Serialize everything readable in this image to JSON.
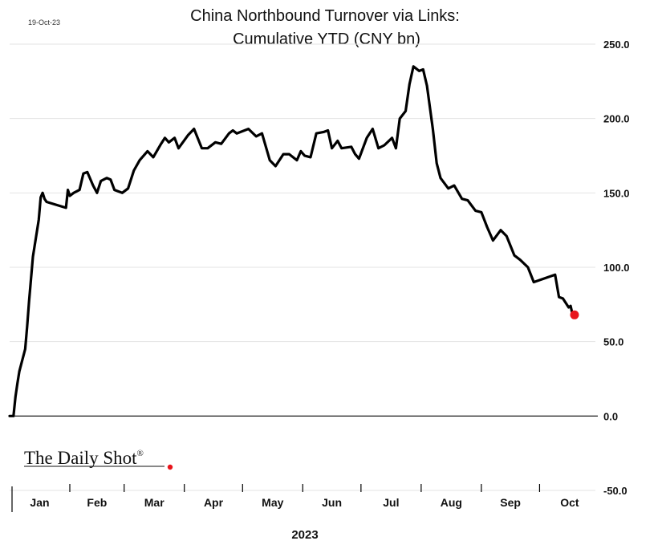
{
  "date_stamp": "19-Oct-23",
  "brand": {
    "name": "The Daily Shot",
    "mark": "®",
    "dot_color": "#e8141b"
  },
  "chart_data": {
    "type": "line",
    "title": [
      "China Northbound Turnover via Links:",
      "Cumulative YTD (CNY bn)"
    ],
    "xlabel": "2023",
    "ylabel": "",
    "ylim": [
      -50,
      250
    ],
    "yticks": [
      250,
      200,
      150,
      100,
      50,
      0,
      -50
    ],
    "ytick_labels": [
      "250.0",
      "200.0",
      "150.0",
      "100.0",
      "50.0",
      "0.0",
      "-50.0"
    ],
    "y_axis_position": "right",
    "grid": true,
    "legend": "none",
    "x_tick_labels": [
      "Jan",
      "Feb",
      "Mar",
      "Apr",
      "May",
      "Jun",
      "Jul",
      "Aug",
      "Sep",
      "Oct"
    ],
    "line_color": "#000000",
    "last_point_color": "#e8141b",
    "series": [
      {
        "x": [
          "2023-01-01",
          "2023-01-03",
          "2023-01-04",
          "2023-01-05",
          "2023-01-06",
          "2023-01-09",
          "2023-01-10",
          "2023-01-11",
          "2023-01-12",
          "2023-01-13",
          "2023-01-16",
          "2023-01-17",
          "2023-01-18",
          "2023-01-19",
          "2023-01-20",
          "2023-01-30",
          "2023-01-31",
          "2023-02-01",
          "2023-02-03",
          "2023-02-06",
          "2023-02-08",
          "2023-02-10",
          "2023-02-13",
          "2023-02-15",
          "2023-02-17",
          "2023-02-20",
          "2023-02-22",
          "2023-02-24",
          "2023-02-28",
          "2023-03-03",
          "2023-03-06",
          "2023-03-09",
          "2023-03-13",
          "2023-03-16",
          "2023-03-20",
          "2023-03-22",
          "2023-03-24",
          "2023-03-27",
          "2023-03-29",
          "2023-04-03",
          "2023-04-06",
          "2023-04-10",
          "2023-04-13",
          "2023-04-17",
          "2023-04-20",
          "2023-04-24",
          "2023-04-26",
          "2023-04-28",
          "2023-05-04",
          "2023-05-08",
          "2023-05-11",
          "2023-05-15",
          "2023-05-18",
          "2023-05-22",
          "2023-05-25",
          "2023-05-29",
          "2023-05-31",
          "2023-06-02",
          "2023-06-05",
          "2023-06-08",
          "2023-06-12",
          "2023-06-14",
          "2023-06-16",
          "2023-06-19",
          "2023-06-21",
          "2023-06-26",
          "2023-06-28",
          "2023-06-30",
          "2023-07-04",
          "2023-07-07",
          "2023-07-10",
          "2023-07-13",
          "2023-07-17",
          "2023-07-19",
          "2023-07-21",
          "2023-07-24",
          "2023-07-26",
          "2023-07-28",
          "2023-07-31",
          "2023-08-02",
          "2023-08-04",
          "2023-08-07",
          "2023-08-09",
          "2023-08-11",
          "2023-08-15",
          "2023-08-18",
          "2023-08-22",
          "2023-08-25",
          "2023-08-29",
          "2023-09-01",
          "2023-09-04",
          "2023-09-07",
          "2023-09-11",
          "2023-09-14",
          "2023-09-18",
          "2023-09-21",
          "2023-09-25",
          "2023-09-28",
          "2023-10-09",
          "2023-10-11",
          "2023-10-13",
          "2023-10-16",
          "2023-10-17",
          "2023-10-18",
          "2023-10-19"
        ],
        "values": [
          0,
          0,
          13,
          22,
          30,
          45,
          60,
          77,
          92,
          107,
          132,
          147,
          150,
          146,
          144,
          140,
          152,
          148,
          150,
          152,
          163,
          164,
          155,
          150,
          158,
          160,
          159,
          152,
          150,
          153,
          165,
          172,
          178,
          174,
          183,
          187,
          184,
          187,
          180,
          189,
          193,
          180,
          180,
          184,
          183,
          190,
          192,
          190,
          193,
          188,
          190,
          172,
          168,
          176,
          176,
          172,
          178,
          175,
          174,
          190,
          191,
          192,
          180,
          185,
          180,
          181,
          176,
          173,
          187,
          193,
          180,
          182,
          187,
          180,
          200,
          205,
          223,
          235,
          232,
          233,
          222,
          193,
          170,
          160,
          153,
          155,
          146,
          145,
          138,
          137,
          127,
          118,
          125,
          121,
          108,
          105,
          100,
          90,
          95,
          80,
          79,
          73,
          74,
          68,
          68
        ]
      }
    ]
  }
}
